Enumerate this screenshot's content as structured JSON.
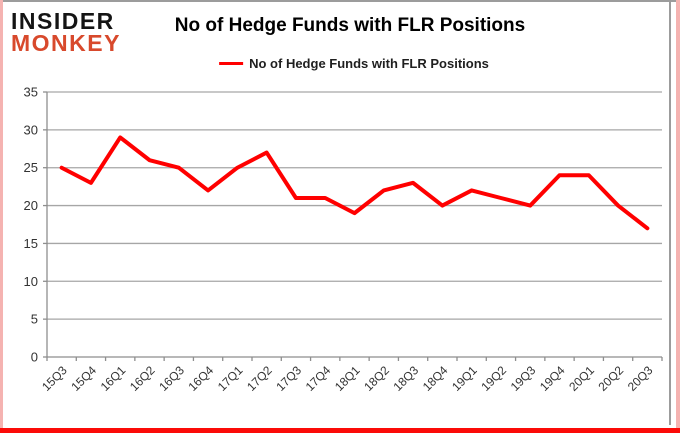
{
  "logo": {
    "line1": "INSIDER",
    "line2": "MONKEY"
  },
  "title": "No of Hedge Funds with FLR Positions",
  "legend": {
    "label": "No of Hedge Funds with FLR Positions"
  },
  "chart_data": {
    "type": "line",
    "title": "No of Hedge Funds with FLR Positions",
    "categories": [
      "15Q3",
      "15Q4",
      "16Q1",
      "16Q2",
      "16Q3",
      "16Q4",
      "17Q1",
      "17Q2",
      "17Q3",
      "17Q4",
      "18Q1",
      "18Q2",
      "18Q3",
      "18Q4",
      "19Q1",
      "19Q2",
      "19Q3",
      "19Q4",
      "20Q1",
      "20Q2",
      "20Q3"
    ],
    "series": [
      {
        "name": "No of Hedge Funds with FLR Positions",
        "color": "#ff0000",
        "values": [
          25,
          23,
          29,
          26,
          25,
          22,
          25,
          27,
          21,
          21,
          19,
          22,
          23,
          20,
          22,
          21,
          20,
          24,
          24,
          20,
          17
        ]
      }
    ],
    "xlabel": "",
    "ylabel": "",
    "ylim": [
      0,
      35
    ],
    "ytick_step": 5,
    "grid": true,
    "legend_position": "top-center"
  },
  "colors": {
    "line": "#ff0000",
    "logo_black": "#141414",
    "logo_red": "#d8492c",
    "grid": "#a6a6a6",
    "axis": "#8e8e8e",
    "tick_text": "#333333",
    "border_gray": "#9c9c9c",
    "border_pink": "#f5b3b1",
    "border_red": "#fb0b08"
  }
}
